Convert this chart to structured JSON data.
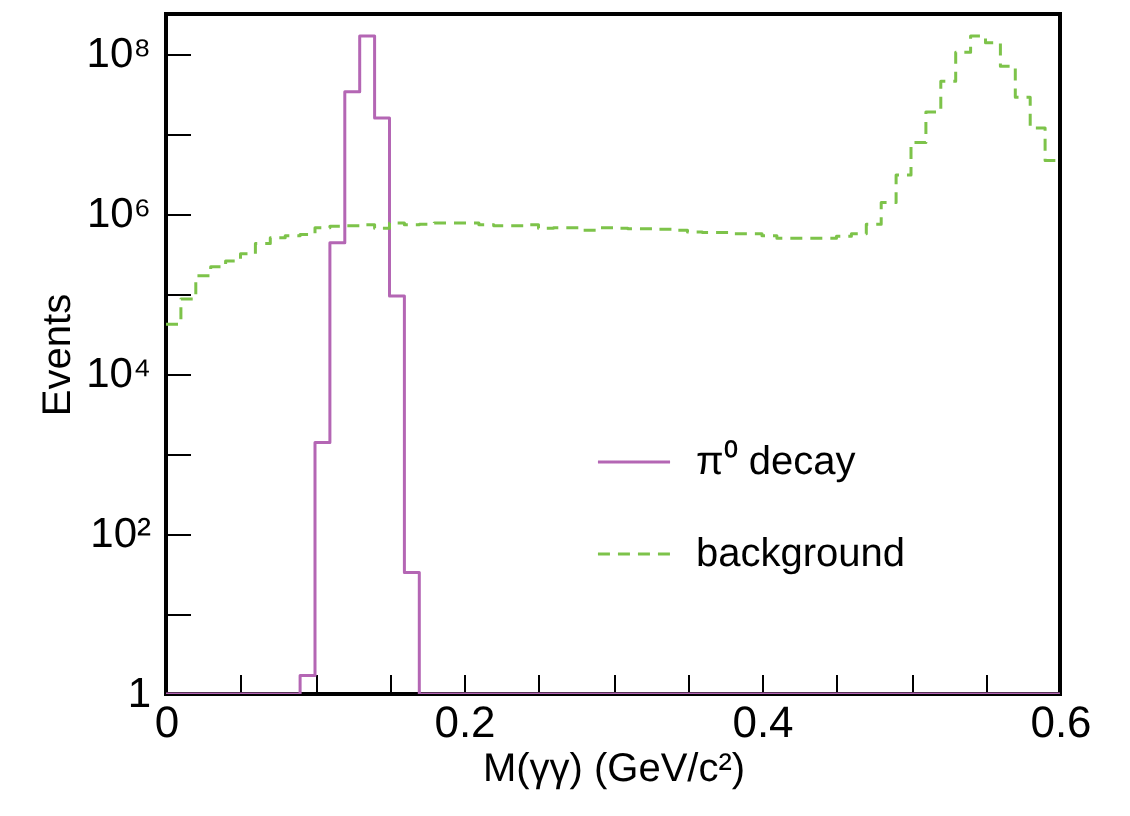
{
  "chart_data": {
    "type": "histogram",
    "xlabel": "M(γγ) (GeV/c²)",
    "ylabel": "Events",
    "bins": [
      0,
      0.01,
      0.02,
      0.03,
      0.04,
      0.05,
      0.06,
      0.07,
      0.08,
      0.09,
      0.1,
      0.11,
      0.12,
      0.13,
      0.14,
      0.15,
      0.16,
      0.17,
      0.18,
      0.19,
      0.2,
      0.21,
      0.22,
      0.23,
      0.24,
      0.25,
      0.26,
      0.27,
      0.28,
      0.29,
      0.3,
      0.31,
      0.32,
      0.33,
      0.34,
      0.35,
      0.36,
      0.37,
      0.38,
      0.39,
      0.4,
      0.41,
      0.42,
      0.43,
      0.44,
      0.45,
      0.46,
      0.47,
      0.48,
      0.49,
      0.5,
      0.51,
      0.52,
      0.53,
      0.54,
      0.55,
      0.56,
      0.57,
      0.58,
      0.59,
      0.6
    ],
    "series": [
      {
        "name": "π⁰ decay",
        "color": "#b466b4",
        "line_style": "solid",
        "values": [
          1,
          1,
          1,
          1,
          1,
          1,
          1,
          1,
          1,
          1.7,
          1400,
          440000,
          34000000,
          170000000,
          16000000,
          95000,
          33,
          1,
          1,
          1,
          1,
          1,
          1,
          1,
          1,
          1,
          1,
          1,
          1,
          1,
          1,
          1,
          1,
          1,
          1,
          1,
          1,
          1,
          1,
          1,
          1,
          1,
          1,
          1,
          1,
          1,
          1,
          1,
          1,
          1,
          1,
          1,
          1,
          1,
          1,
          1,
          1,
          1,
          1,
          1
        ]
      },
      {
        "name": "background",
        "color": "#7dc34a",
        "line_style": "dashed",
        "values": [
          42000,
          87000,
          170000,
          220000,
          260000,
          320000,
          430000,
          510000,
          540000,
          560000,
          680000,
          710000,
          720000,
          740000,
          670000,
          780000,
          740000,
          750000,
          780000,
          780000,
          780000,
          740000,
          720000,
          720000,
          740000,
          670000,
          680000,
          680000,
          630000,
          680000,
          670000,
          660000,
          660000,
          650000,
          630000,
          600000,
          590000,
          590000,
          570000,
          570000,
          540000,
          500000,
          500000,
          500000,
          500000,
          530000,
          570000,
          750000,
          1400000,
          3100000,
          7900000,
          19000000,
          46000000,
          106000000,
          170000000,
          140000000,
          71000000,
          29000000,
          12000000,
          4700000
        ]
      }
    ],
    "xlim": [
      0,
      0.6
    ],
    "ylim": [
      1,
      320000000
    ],
    "xticks": [
      0,
      {
        "value": 0.05,
        "label": null
      },
      {
        "value": 0.1,
        "label": null
      },
      {
        "value": 0.15,
        "label": null
      },
      0.2,
      {
        "value": 0.25,
        "label": null
      },
      {
        "value": 0.3,
        "label": null
      },
      {
        "value": 0.35,
        "label": null
      },
      0.4,
      {
        "value": 0.45,
        "label": null
      },
      {
        "value": 0.5,
        "label": null
      },
      {
        "value": 0.55,
        "label": null
      },
      0.6
    ],
    "yticks": [
      1,
      {
        "value": 10,
        "label": null
      },
      {
        "value": 100,
        "label": "10²"
      },
      {
        "value": 1000,
        "label": null
      },
      {
        "value": 10000,
        "label": "10⁴"
      },
      {
        "value": 100000,
        "label": null
      },
      {
        "value": 1000000,
        "label": "10⁶"
      },
      {
        "value": 10000000,
        "label": null
      },
      {
        "value": 100000000,
        "label": "10⁸"
      }
    ],
    "log": true,
    "legend": "bottom right"
  }
}
